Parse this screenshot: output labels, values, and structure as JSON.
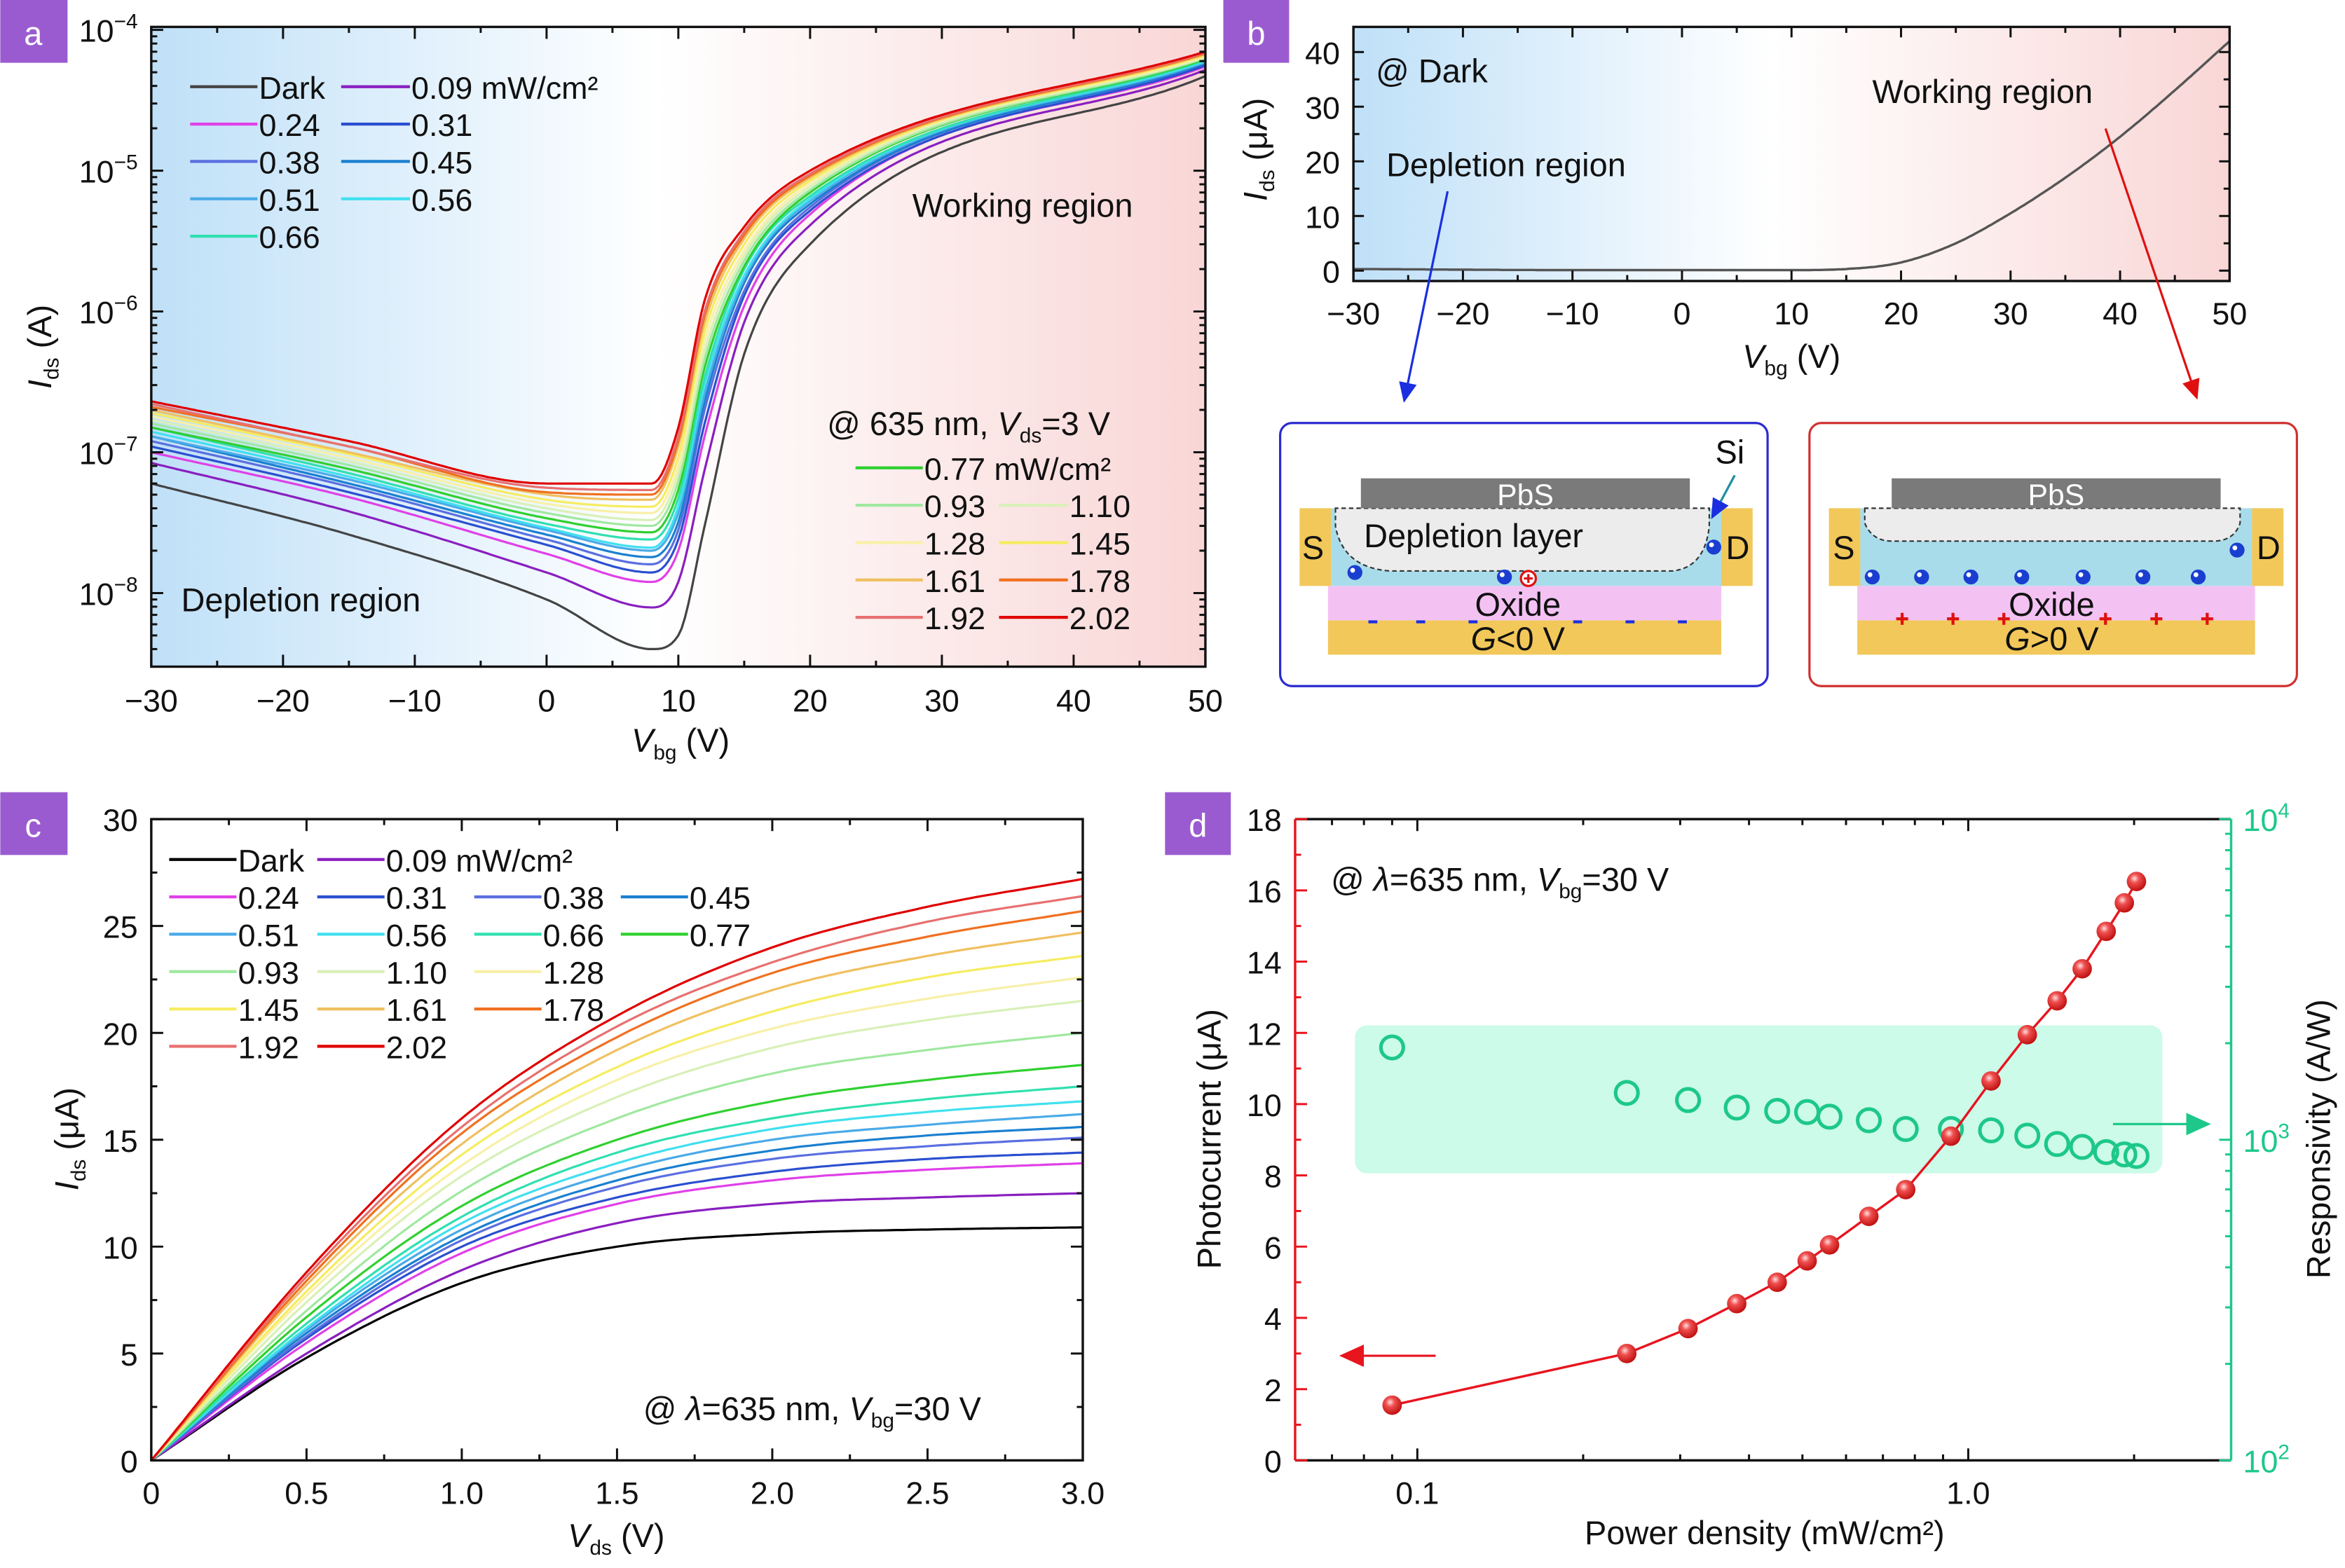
{
  "panel_label_color": "#9b5bd0",
  "chart_data": [
    {
      "panel_label": "a",
      "type": "line",
      "x_scale": "linear",
      "y_scale": "log",
      "xlabel": {
        "var": "V",
        "sub": "bg",
        "unit": " (V)"
      },
      "ylabel": {
        "var": "I",
        "sub": "ds",
        "unit": " (A)"
      },
      "xlim": [
        -30,
        50
      ],
      "ylim": [
        3e-09,
        0.000105
      ],
      "xticks": [
        -30,
        -20,
        -10,
        0,
        10,
        20,
        30,
        40,
        50
      ],
      "xtick_labels": [
        "−30",
        "−20",
        "−10",
        "0",
        "10",
        "20",
        "30",
        "40",
        "50"
      ],
      "yticks": [
        1e-08,
        1e-07,
        1e-06,
        1e-05,
        0.0001
      ],
      "ytick_labels": [
        {
          "base": "10",
          "exp": "−8"
        },
        {
          "base": "10",
          "exp": "−7"
        },
        {
          "base": "10",
          "exp": "−6"
        },
        {
          "base": "10",
          "exp": "−5"
        },
        {
          "base": "10",
          "exp": "−4"
        }
      ],
      "grid": false,
      "background_colors": [
        "#bfe0f8",
        "#ffffff",
        "#f9d6d6"
      ],
      "annotations": {
        "depletion": "Depletion region",
        "working": "Working region",
        "condition": {
          "pre": "@ 635 nm, ",
          "var": "V",
          "sub": "ds",
          "post": "=3 V"
        }
      },
      "x": [
        -30,
        -15,
        0,
        8,
        10,
        12,
        15,
        20,
        50
      ],
      "series": [
        {
          "name": "Dark",
          "color": "#444444",
          "values": [
            6e-08,
            2.6e-08,
            9e-09,
            4e-09,
            5e-09,
            3e-08,
            5e-07,
            3e-06,
            4.7e-05
          ]
        },
        {
          "name": "0.09 mW/cm²",
          "color": "#8a1fc0",
          "values": [
            8.4e-08,
            3.8e-08,
            1.4e-08,
            7.9e-09,
            1.2e-08,
            7.5e-08,
            8.4e-07,
            4.1e-06,
            5.2e-05
          ]
        },
        {
          "name": "0.24",
          "color": "#e040e8",
          "values": [
            1e-07,
            4.8e-08,
            1.9e-08,
            1.2e-08,
            2e-08,
            1.3e-07,
            1.1e-06,
            4.9e-06,
            5.5e-05
          ]
        },
        {
          "name": "0.31",
          "color": "#2a4fd0",
          "values": [
            1.1e-07,
            5.2e-08,
            2.2e-08,
            1.4e-08,
            2.4e-08,
            1.6e-07,
            1.3e-06,
            5.2e-06,
            5.6e-05
          ]
        },
        {
          "name": "0.38",
          "color": "#5a6fe0",
          "values": [
            1.2e-07,
            5.7e-08,
            2.4e-08,
            1.6e-08,
            2.8e-08,
            2e-07,
            1.4e-06,
            5.5e-06,
            5.8e-05
          ]
        },
        {
          "name": "0.45",
          "color": "#1a80d0",
          "values": [
            1.3e-07,
            6e-08,
            2.6e-08,
            1.8e-08,
            3.2e-08,
            2.3e-07,
            1.6e-06,
            5.8e-06,
            5.8e-05
          ]
        },
        {
          "name": "0.51",
          "color": "#4aaae8",
          "values": [
            1.3e-07,
            6.4e-08,
            2.8e-08,
            2e-08,
            3.7e-08,
            2.6e-07,
            1.7e-06,
            6.1e-06,
            5.9e-05
          ]
        },
        {
          "name": "0.56",
          "color": "#40e0f0",
          "values": [
            1.4e-07,
            6.7e-08,
            2.9e-08,
            2.1e-08,
            4.1e-08,
            3e-07,
            1.8e-06,
            6.3e-06,
            6e-05
          ]
        },
        {
          "name": "0.66",
          "color": "#30e0b0",
          "values": [
            1.5e-07,
            7.1e-08,
            3.1e-08,
            2.4e-08,
            4.7e-08,
            3.4e-07,
            2e-06,
            6.6e-06,
            6.1e-05
          ]
        },
        {
          "name": "0.77 mW/cm²",
          "color": "#30d030",
          "values": [
            1.5e-07,
            7.6e-08,
            3.4e-08,
            2.7e-08,
            5.4e-08,
            4e-07,
            2.1e-06,
            7e-06,
            6.2e-05
          ]
        },
        {
          "name": "0.93",
          "color": "#a0e8a0",
          "values": [
            1.6e-07,
            8.1e-08,
            3.7e-08,
            3e-08,
            6.2e-08,
            4.6e-07,
            2.3e-06,
            7.3e-06,
            6.3e-05
          ]
        },
        {
          "name": "1.10",
          "color": "#d8f0b8",
          "values": [
            1.7e-07,
            8.6e-08,
            4e-08,
            3.3e-08,
            7.1e-08,
            5.3e-07,
            2.5e-06,
            7.7e-06,
            6.4e-05
          ]
        },
        {
          "name": "1.28",
          "color": "#f8f0a8",
          "values": [
            1.8e-07,
            9.1e-08,
            4.3e-08,
            3.7e-08,
            8.1e-08,
            6.2e-07,
            2.7e-06,
            8.1e-06,
            6.5e-05
          ]
        },
        {
          "name": "1.45",
          "color": "#f6ec60",
          "values": [
            1.9e-07,
            9.7e-08,
            4.6e-08,
            4.1e-08,
            9.3e-08,
            7.2e-07,
            3e-06,
            8.5e-06,
            6.6e-05
          ]
        },
        {
          "name": "1.61",
          "color": "#f0c060",
          "values": [
            2e-07,
            1e-07,
            5e-08,
            4.6e-08,
            1.1e-07,
            8.3e-07,
            3.3e-06,
            8.9e-06,
            6.7e-05
          ]
        },
        {
          "name": "1.78",
          "color": "#f07020",
          "values": [
            2.1e-07,
            1.1e-07,
            5.2e-08,
            5e-08,
            1.2e-07,
            9.3e-07,
            3.5e-06,
            9.2e-06,
            6.8e-05
          ]
        },
        {
          "name": "1.92",
          "color": "#e87070",
          "values": [
            2.2e-07,
            1.1e-07,
            5.6e-08,
            5.4e-08,
            1.3e-07,
            1e-06,
            3.7e-06,
            9.5e-06,
            6.9e-05
          ]
        },
        {
          "name": "2.02",
          "color": "#e00000",
          "values": [
            2.3e-07,
            1.2e-07,
            6e-08,
            6e-08,
            1.5e-07,
            1.2e-06,
            4e-06,
            1e-05,
            7e-05
          ]
        }
      ]
    },
    {
      "panel_label": "b",
      "type": "line",
      "x_scale": "linear",
      "y_scale": "linear",
      "xlabel": {
        "var": "V",
        "sub": "bg",
        "unit": " (V)"
      },
      "ylabel": {
        "var": "I",
        "sub": "ds",
        "unit": " (μA)"
      },
      "xlim": [
        -30,
        50
      ],
      "ylim": [
        -1.9,
        44.6
      ],
      "xticks": [
        -30,
        -20,
        -10,
        0,
        10,
        20,
        30,
        40,
        50
      ],
      "xtick_labels": [
        "−30",
        "−20",
        "−10",
        "0",
        "10",
        "20",
        "30",
        "40",
        "50"
      ],
      "yticks": [
        0,
        10,
        20,
        30,
        40
      ],
      "ytick_labels": [
        "0",
        "10",
        "20",
        "30",
        "40"
      ],
      "grid": false,
      "background_colors": [
        "#bfe0f8",
        "#ffffff",
        "#f9d6d6"
      ],
      "annotations": {
        "condition": "@ Dark",
        "working": "Working region",
        "depletion": "Depletion region"
      },
      "x": [
        -30,
        -10,
        10,
        15,
        20,
        25,
        30,
        35,
        40,
        45,
        50
      ],
      "series": [
        {
          "color": "#555555",
          "values": [
            0.3,
            0.1,
            0.1,
            0.3,
            1.5,
            5,
            10.5,
            17,
            24.5,
            33,
            42
          ]
        }
      ],
      "insets": {
        "pbs": "PbS",
        "si": "Si",
        "depletion_layer": "Depletion layer",
        "source": "S",
        "drain": "D",
        "oxide": "Oxide",
        "gate_var": "G",
        "gate_negative": "<0 V",
        "gate_positive": ">0 V",
        "colors": {
          "left_border": "#2a2ad0",
          "right_border": "#d03030",
          "electrode": "#f2c85a",
          "oxide": "#f3c2f3",
          "channel": "#a9dcea",
          "pbs": "#7a7a7a",
          "si_label": "#1f8fa0"
        }
      }
    },
    {
      "panel_label": "c",
      "type": "line",
      "x_scale": "linear",
      "y_scale": "linear",
      "xlabel": {
        "var": "V",
        "sub": "ds",
        "unit": " (V)"
      },
      "ylabel": {
        "var": "I",
        "sub": "ds",
        "unit": " (μA)"
      },
      "xlim": [
        0,
        3
      ],
      "ylim": [
        0,
        30
      ],
      "xticks": [
        0,
        0.5,
        1.0,
        1.5,
        2.0,
        2.5,
        3.0
      ],
      "xtick_labels": [
        "0",
        "0.5",
        "1.0",
        "1.5",
        "2.0",
        "2.5",
        "3.0"
      ],
      "yticks": [
        0,
        5,
        10,
        15,
        20,
        25,
        30
      ],
      "ytick_labels": [
        "0",
        "5",
        "10",
        "15",
        "20",
        "25",
        "30"
      ],
      "grid": false,
      "annotations": {
        "condition": {
          "pre": "@ ",
          "lambda": "λ",
          "mid": "=635 nm, ",
          "var": "V",
          "sub": "bg",
          "post": "=30 V"
        }
      },
      "x": [
        0,
        0.5,
        1.0,
        1.5,
        2.0,
        2.5,
        3.0
      ],
      "series": [
        {
          "name": "Dark",
          "color": "#000000",
          "values": [
            0,
            4.8,
            8.3,
            10.0,
            10.6,
            10.8,
            10.9
          ]
        },
        {
          "name": "0.09 mW/cm²",
          "color": "#8a1fc0",
          "values": [
            0,
            5.0,
            8.9,
            11.1,
            12.0,
            12.3,
            12.5
          ]
        },
        {
          "name": "0.24",
          "color": "#e040e8",
          "values": [
            0,
            5.5,
            9.7,
            12.0,
            13.1,
            13.6,
            13.9
          ]
        },
        {
          "name": "0.31",
          "color": "#2a4fd0",
          "values": [
            0,
            5.7,
            10.0,
            12.3,
            13.5,
            14.1,
            14.4
          ]
        },
        {
          "name": "0.38",
          "color": "#5a6fe0",
          "values": [
            0,
            5.8,
            10.3,
            12.8,
            14.1,
            14.7,
            15.1
          ]
        },
        {
          "name": "0.45",
          "color": "#1a80d0",
          "values": [
            0,
            5.95,
            10.5,
            13.1,
            14.5,
            15.2,
            15.6
          ]
        },
        {
          "name": "0.51",
          "color": "#4aaae8",
          "values": [
            0,
            6.1,
            10.8,
            13.5,
            15.0,
            15.7,
            16.2
          ]
        },
        {
          "name": "0.56",
          "color": "#40e0f0",
          "values": [
            0,
            6.2,
            11.1,
            13.9,
            15.5,
            16.3,
            16.8
          ]
        },
        {
          "name": "0.66",
          "color": "#30e0b0",
          "values": [
            0,
            6.4,
            11.4,
            14.4,
            16.0,
            16.9,
            17.5
          ]
        },
        {
          "name": "0.77",
          "color": "#30d030",
          "values": [
            0,
            6.7,
            11.9,
            15.0,
            16.8,
            17.8,
            18.5
          ]
        },
        {
          "name": "0.93",
          "color": "#a0e8a0",
          "values": [
            0,
            7.0,
            12.6,
            16.0,
            18.1,
            19.2,
            20.0
          ]
        },
        {
          "name": "1.10",
          "color": "#d8f0b8",
          "values": [
            0,
            7.4,
            13.3,
            17.0,
            19.3,
            20.6,
            21.5
          ]
        },
        {
          "name": "1.28",
          "color": "#f8f0a8",
          "values": [
            0,
            7.7,
            13.8,
            17.8,
            20.2,
            21.6,
            22.6
          ]
        },
        {
          "name": "1.45",
          "color": "#f6ec60",
          "values": [
            0,
            7.9,
            14.3,
            18.4,
            21.0,
            22.6,
            23.6
          ]
        },
        {
          "name": "1.61",
          "color": "#f0c060",
          "values": [
            0,
            8.2,
            14.8,
            19.2,
            22.0,
            23.6,
            24.7
          ]
        },
        {
          "name": "1.78",
          "color": "#f07020",
          "values": [
            0,
            8.4,
            15.3,
            19.8,
            22.8,
            24.5,
            25.7
          ]
        },
        {
          "name": "1.92",
          "color": "#e87070",
          "values": [
            0,
            8.6,
            15.6,
            20.3,
            23.3,
            25.2,
            26.4
          ]
        },
        {
          "name": "2.02",
          "color": "#e00000",
          "values": [
            0,
            8.8,
            16.0,
            20.8,
            24.0,
            25.9,
            27.2
          ]
        }
      ]
    },
    {
      "panel_label": "d",
      "type": "scatter",
      "x_scale": "log",
      "xlabel": "Power density (mW/cm²)",
      "ylabel_left": "Photocurrent (μA)",
      "ylabel_right": "Responsivity (A/W)",
      "xlim": [
        0.06,
        3.0
      ],
      "ylim_left": [
        0,
        18
      ],
      "ylim_right": [
        100,
        10000
      ],
      "y_scale_right": "log",
      "xticks": [
        0.1,
        1.0
      ],
      "xtick_labels": [
        "0.1",
        "1.0"
      ],
      "yticks_left": [
        0,
        2,
        4,
        6,
        8,
        10,
        12,
        14,
        16,
        18
      ],
      "ytick_labels_left": [
        "0",
        "2",
        "4",
        "6",
        "8",
        "10",
        "12",
        "14",
        "16",
        "18"
      ],
      "yticks_right": [
        100,
        1000,
        10000
      ],
      "ytick_labels_right": [
        {
          "base": "10",
          "exp": "2"
        },
        {
          "base": "10",
          "exp": "3"
        },
        {
          "base": "10",
          "exp": "4"
        }
      ],
      "grid": false,
      "highlight_color": "#ccfbe9",
      "annotations": {
        "condition": {
          "pre": "@ ",
          "lambda": "λ",
          "mid": "=635 nm, ",
          "var": "V",
          "sub": "bg",
          "post": "=30 V"
        }
      },
      "x": [
        0.09,
        0.24,
        0.31,
        0.38,
        0.45,
        0.51,
        0.56,
        0.66,
        0.77,
        0.93,
        1.1,
        1.28,
        1.45,
        1.61,
        1.78,
        1.92,
        2.02
      ],
      "series": [
        {
          "axis": "left",
          "color": "#e8141e",
          "marker": "filled-sphere",
          "line": true,
          "values": [
            1.55,
            3.0,
            3.7,
            4.4,
            5.0,
            5.6,
            6.05,
            6.85,
            7.6,
            9.1,
            10.65,
            11.95,
            12.9,
            13.8,
            14.85,
            15.65,
            16.25
          ]
        },
        {
          "axis": "right",
          "color": "#1dc88a",
          "marker": "open-circle",
          "line": false,
          "values": [
            1940,
            1400,
            1330,
            1260,
            1230,
            1220,
            1180,
            1150,
            1080,
            1080,
            1070,
            1030,
            970,
            950,
            915,
            900,
            890
          ]
        }
      ]
    }
  ]
}
